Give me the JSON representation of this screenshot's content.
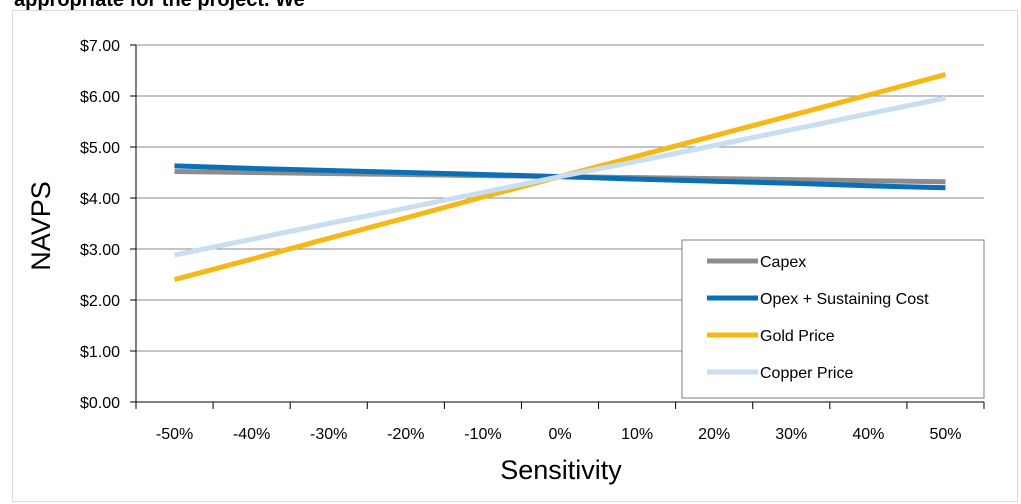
{
  "page": {
    "cut_title": "appropriate for the project. We"
  },
  "chart_data": {
    "type": "line",
    "title": "",
    "xlabel": "Sensitivity",
    "ylabel": "NAVPS",
    "x": [
      -50,
      -40,
      -30,
      -20,
      -10,
      0,
      10,
      20,
      30,
      40,
      50
    ],
    "x_tick_labels": [
      "-50%",
      "-40%",
      "-30%",
      "-20%",
      "-10%",
      "0%",
      "10%",
      "20%",
      "30%",
      "40%",
      "50%"
    ],
    "y_tick_labels": [
      "$0.00",
      "$1.00",
      "$2.00",
      "$3.00",
      "$4.00",
      "$5.00",
      "$6.00",
      "$7.00"
    ],
    "ylim": [
      0,
      7
    ],
    "grid": "horizontal",
    "legend_position": "bottom-right",
    "series": [
      {
        "name": "Capex",
        "color": "#8c8c8c",
        "values": [
          4.52,
          4.5,
          4.48,
          4.46,
          4.44,
          4.42,
          4.4,
          4.38,
          4.36,
          4.34,
          4.32
        ]
      },
      {
        "name": "Opex + Sustaining Cost",
        "color": "#0a6fb5",
        "values": [
          4.63,
          4.58,
          4.54,
          4.5,
          4.46,
          4.42,
          4.37,
          4.33,
          4.29,
          4.24,
          4.2
        ]
      },
      {
        "name": "Gold Price",
        "color": "#f5b816",
        "values": [
          2.4,
          2.8,
          3.21,
          3.61,
          4.02,
          4.42,
          4.82,
          5.22,
          5.62,
          6.02,
          6.42
        ]
      },
      {
        "name": "Copper Price",
        "color": "#c9def0",
        "values": [
          2.88,
          3.19,
          3.5,
          3.8,
          4.11,
          4.42,
          4.72,
          5.03,
          5.34,
          5.65,
          5.96
        ]
      }
    ]
  }
}
